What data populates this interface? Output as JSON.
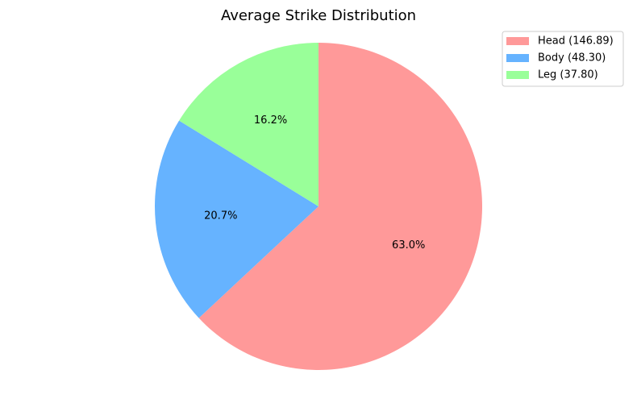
{
  "chart_data": {
    "type": "pie",
    "title": "Average Strike Distribution",
    "start_angle_deg": 90,
    "direction": "clockwise",
    "legend_position": "top-right",
    "slices": [
      {
        "label": "Head (146.89)",
        "value": 146.89,
        "percent_label": "63.0%",
        "color": "#ff9999"
      },
      {
        "label": "Body (48.30)",
        "value": 48.3,
        "percent_label": "20.7%",
        "color": "#66b3ff"
      },
      {
        "label": "Leg (37.80)",
        "value": 37.8,
        "percent_label": "16.2%",
        "color": "#99ff99"
      }
    ]
  }
}
